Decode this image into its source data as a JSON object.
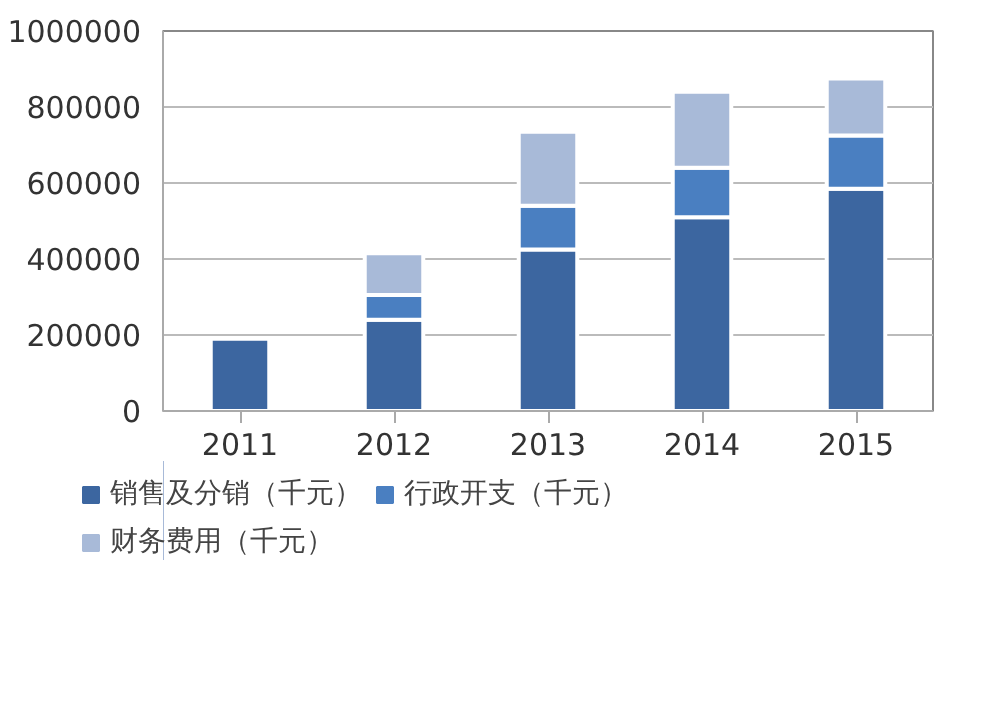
{
  "chart_data": {
    "type": "bar",
    "stacked": true,
    "categories": [
      "2011",
      "2012",
      "2013",
      "2014",
      "2015"
    ],
    "series": [
      {
        "name": "销售及分销（千元）",
        "color": "#3c66a0",
        "values": [
          190000,
          240000,
          425000,
          510000,
          585000
        ]
      },
      {
        "name": "行政开支（千元）",
        "color": "#4a7fc1",
        "values": [
          null,
          65000,
          115000,
          130000,
          140000
        ]
      },
      {
        "name": "财务费用（千元）",
        "color": "#a8bad8",
        "values": [
          null,
          110000,
          195000,
          200000,
          150000
        ]
      }
    ],
    "ylim": [
      0,
      1000000
    ],
    "yticks": [
      0,
      200000,
      400000,
      600000,
      800000,
      1000000
    ],
    "grid": "y",
    "legend": "bottom"
  }
}
